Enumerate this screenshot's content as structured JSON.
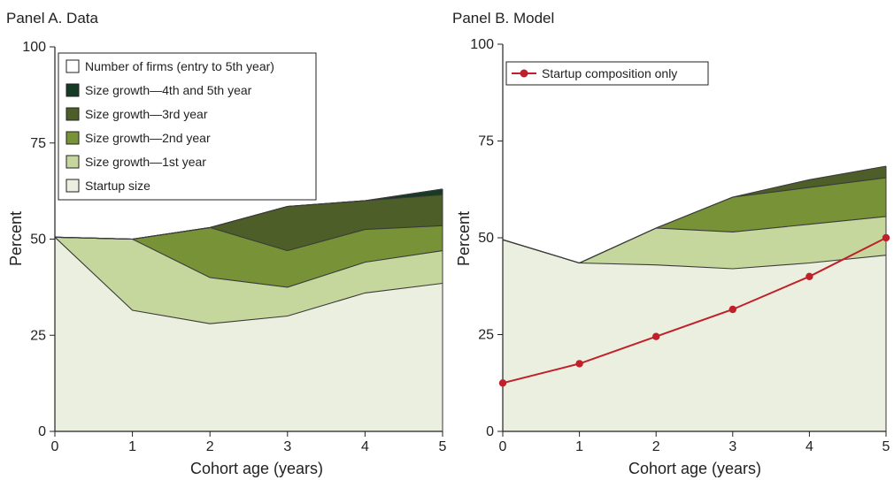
{
  "chart_data": [
    {
      "type": "area",
      "title": "Panel A. Data",
      "xlabel": "Cohort age (years)",
      "ylabel": "Percent",
      "xlim": [
        0,
        5
      ],
      "ylim": [
        0,
        100
      ],
      "x_ticks": [
        "0",
        "1",
        "2",
        "3",
        "4",
        "5"
      ],
      "y_ticks": [
        "0",
        "25",
        "50",
        "75",
        "100"
      ],
      "grid": false,
      "legend_position": "top-left",
      "x": [
        0,
        1,
        2,
        3,
        4,
        5
      ],
      "series": [
        {
          "name": "Startup size",
          "color": "#ebefdf",
          "values": [
            50.5,
            31.5,
            28,
            30,
            36,
            38.5
          ]
        },
        {
          "name": "Size growth—1st year",
          "color": "#c5d79c",
          "values": [
            50.5,
            50,
            40,
            37.5,
            44,
            47
          ]
        },
        {
          "name": "Size growth—2nd year",
          "color": "#789237",
          "values": [
            50.5,
            50,
            53,
            47,
            52.5,
            53.5
          ]
        },
        {
          "name": "Size growth—3rd year",
          "color": "#4d5e28",
          "values": [
            50.5,
            50,
            53,
            58.5,
            60,
            61.5
          ]
        },
        {
          "name": "Size growth—4th and 5th year",
          "color": "#163a24",
          "values": [
            50.5,
            50,
            53,
            58.5,
            60,
            63
          ]
        },
        {
          "name": "Number of firms (entry to 5th year)",
          "color": "#ffffff",
          "values": [
            50.5,
            50,
            53,
            58.5,
            60,
            63
          ]
        }
      ],
      "legend_order": [
        "Number of firms (entry to 5th year)",
        "Size growth—4th and 5th year",
        "Size growth—3rd year",
        "Size growth—2nd year",
        "Size growth—1st year",
        "Startup size"
      ]
    },
    {
      "type": "area",
      "title": "Panel B. Model",
      "xlabel": "Cohort age (years)",
      "ylabel": "Percent",
      "xlim": [
        0,
        5
      ],
      "ylim": [
        0,
        100
      ],
      "x_ticks": [
        "0",
        "1",
        "2",
        "3",
        "4",
        "5"
      ],
      "y_ticks": [
        "0",
        "25",
        "50",
        "75",
        "100"
      ],
      "grid": false,
      "legend_position": "top-left",
      "x": [
        0,
        1,
        2,
        3,
        4,
        5
      ],
      "series": [
        {
          "name": "Startup size",
          "color": "#ebefdf",
          "values": [
            49.5,
            43.5,
            43,
            42,
            43.5,
            45.5
          ]
        },
        {
          "name": "Size growth—1st year",
          "color": "#c5d79c",
          "values": [
            49.5,
            43.5,
            52.5,
            51.5,
            53.5,
            55.5
          ]
        },
        {
          "name": "Size growth—2nd year",
          "color": "#789237",
          "values": [
            49.5,
            43.5,
            52.5,
            60.5,
            63,
            65.5
          ]
        },
        {
          "name": "Size growth—3rd year",
          "color": "#4d5e28",
          "values": [
            49.5,
            43.5,
            52.5,
            60.5,
            65,
            68.5
          ]
        }
      ],
      "line_series": [
        {
          "name": "Startup composition only",
          "color": "#c0202a",
          "values": [
            12.5,
            17.5,
            24.5,
            31.5,
            40,
            50
          ]
        }
      ]
    }
  ]
}
